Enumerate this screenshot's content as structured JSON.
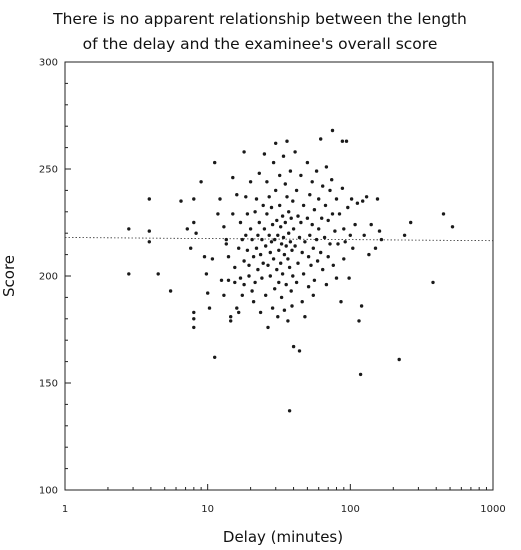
{
  "chart_data": {
    "type": "scatter",
    "title": [
      "There is no apparent relationship between the length",
      "of the delay and the examinee's overall score"
    ],
    "xlabel": "Delay (minutes)",
    "ylabel": "Score",
    "xscale": "log",
    "xlim": [
      1,
      1000
    ],
    "ylim": [
      100,
      300
    ],
    "xticks": [
      1,
      10,
      100,
      1000
    ],
    "xtick_labels": [
      "1",
      "10",
      "100",
      "1000"
    ],
    "yticks": [
      100,
      150,
      200,
      250,
      300
    ],
    "ytick_labels": [
      "100",
      "150",
      "200",
      "250",
      "300"
    ],
    "grid": false,
    "legend": "none",
    "reference_line": {
      "style": "dotted",
      "y_start": 218,
      "y_end": 216.5
    },
    "marker_color": "#1a1a1a",
    "points": [
      [
        2.8,
        222
      ],
      [
        2.8,
        201
      ],
      [
        3.9,
        236
      ],
      [
        3.9,
        221
      ],
      [
        3.9,
        216
      ],
      [
        4.5,
        201
      ],
      [
        5.5,
        193
      ],
      [
        6.5,
        235
      ],
      [
        7.2,
        222
      ],
      [
        7.6,
        213
      ],
      [
        8.0,
        236
      ],
      [
        8.0,
        225
      ],
      [
        8.0,
        183
      ],
      [
        8.0,
        180
      ],
      [
        8.0,
        176
      ],
      [
        8.3,
        220
      ],
      [
        9.0,
        244
      ],
      [
        9.5,
        209
      ],
      [
        9.8,
        201
      ],
      [
        10.0,
        192
      ],
      [
        10.3,
        185
      ],
      [
        10.8,
        208
      ],
      [
        11.2,
        253
      ],
      [
        11.2,
        162
      ],
      [
        11.8,
        229
      ],
      [
        12.2,
        236
      ],
      [
        12.5,
        198
      ],
      [
        13.0,
        223
      ],
      [
        13.0,
        191
      ],
      [
        13.5,
        217
      ],
      [
        13.5,
        215
      ],
      [
        14.0,
        209
      ],
      [
        14.0,
        198
      ],
      [
        14.5,
        181
      ],
      [
        14.5,
        179
      ],
      [
        15.0,
        246
      ],
      [
        15.0,
        229
      ],
      [
        15.5,
        204
      ],
      [
        15.5,
        197
      ],
      [
        16.0,
        238
      ],
      [
        16.0,
        185
      ],
      [
        16.5,
        213
      ],
      [
        16.5,
        183
      ],
      [
        17.0,
        225
      ],
      [
        17.0,
        199
      ],
      [
        17.5,
        217
      ],
      [
        17.5,
        191
      ],
      [
        18.0,
        258
      ],
      [
        18.0,
        207
      ],
      [
        18.0,
        196
      ],
      [
        18.5,
        237
      ],
      [
        18.5,
        219
      ],
      [
        19.0,
        229
      ],
      [
        19.0,
        212
      ],
      [
        19.5,
        205
      ],
      [
        19.5,
        200
      ],
      [
        20.0,
        244
      ],
      [
        20.0,
        222
      ],
      [
        20.5,
        217
      ],
      [
        20.5,
        193
      ],
      [
        21.0,
        209
      ],
      [
        21.0,
        188
      ],
      [
        21.5,
        230
      ],
      [
        21.5,
        197
      ],
      [
        22.0,
        236
      ],
      [
        22.0,
        213
      ],
      [
        22.5,
        219
      ],
      [
        22.5,
        203
      ],
      [
        23.0,
        248
      ],
      [
        23.0,
        225
      ],
      [
        23.5,
        210
      ],
      [
        23.5,
        183
      ],
      [
        24.0,
        217
      ],
      [
        24.0,
        199
      ],
      [
        24.5,
        233
      ],
      [
        24.5,
        206
      ],
      [
        25.0,
        257
      ],
      [
        25.0,
        222
      ],
      [
        25.5,
        214
      ],
      [
        25.5,
        191
      ],
      [
        26.0,
        244
      ],
      [
        26.0,
        229
      ],
      [
        26.5,
        205
      ],
      [
        26.5,
        176
      ],
      [
        27.0,
        237
      ],
      [
        27.0,
        219
      ],
      [
        27.5,
        211
      ],
      [
        27.5,
        200
      ],
      [
        28.0,
        232
      ],
      [
        28.0,
        216
      ],
      [
        28.5,
        224
      ],
      [
        28.5,
        185
      ],
      [
        29.0,
        253
      ],
      [
        29.0,
        208
      ],
      [
        29.5,
        217
      ],
      [
        29.5,
        194
      ],
      [
        30.0,
        262
      ],
      [
        30.0,
        240
      ],
      [
        30.5,
        226
      ],
      [
        30.5,
        203
      ],
      [
        31.0,
        219
      ],
      [
        31.0,
        181
      ],
      [
        31.5,
        212
      ],
      [
        31.5,
        197
      ],
      [
        32.0,
        247
      ],
      [
        32.0,
        233
      ],
      [
        32.5,
        223
      ],
      [
        32.5,
        206
      ],
      [
        33.0,
        215
      ],
      [
        33.0,
        190
      ],
      [
        33.5,
        228
      ],
      [
        33.5,
        201
      ],
      [
        34.0,
        256
      ],
      [
        34.0,
        218
      ],
      [
        34.5,
        210
      ],
      [
        34.5,
        184
      ],
      [
        35.0,
        243
      ],
      [
        35.0,
        225
      ],
      [
        35.5,
        214
      ],
      [
        35.5,
        196
      ],
      [
        36.0,
        263
      ],
      [
        36.0,
        237
      ],
      [
        36.5,
        208
      ],
      [
        36.5,
        179
      ],
      [
        37.0,
        230
      ],
      [
        37.0,
        220
      ],
      [
        37.5,
        204
      ],
      [
        37.5,
        137
      ],
      [
        38.0,
        249
      ],
      [
        38.0,
        216
      ],
      [
        38.5,
        227
      ],
      [
        38.5,
        193
      ],
      [
        39.0,
        212
      ],
      [
        39.0,
        186
      ],
      [
        39.5,
        235
      ],
      [
        39.5,
        200
      ],
      [
        40.0,
        222
      ],
      [
        40.0,
        167
      ],
      [
        41.0,
        258
      ],
      [
        41.0,
        214
      ],
      [
        42.0,
        240
      ],
      [
        42.0,
        197
      ],
      [
        43.0,
        228
      ],
      [
        43.0,
        206
      ],
      [
        44.0,
        218
      ],
      [
        44.0,
        165
      ],
      [
        45.0,
        247
      ],
      [
        45.0,
        225
      ],
      [
        46.0,
        211
      ],
      [
        46.0,
        188
      ],
      [
        47.0,
        233
      ],
      [
        47.0,
        201
      ],
      [
        48.0,
        216
      ],
      [
        48.0,
        181
      ],
      [
        50.0,
        253
      ],
      [
        50.0,
        227
      ],
      [
        51.0,
        209
      ],
      [
        51.0,
        195
      ],
      [
        52.0,
        238
      ],
      [
        52.0,
        219
      ],
      [
        53.0,
        205
      ],
      [
        54.0,
        244
      ],
      [
        54.0,
        224
      ],
      [
        55.0,
        213
      ],
      [
        55.0,
        191
      ],
      [
        56.0,
        231
      ],
      [
        56.0,
        198
      ],
      [
        58.0,
        249
      ],
      [
        58.0,
        217
      ],
      [
        59.0,
        207
      ],
      [
        60.0,
        236
      ],
      [
        60.0,
        222
      ],
      [
        62.0,
        264
      ],
      [
        62.0,
        211
      ],
      [
        63.0,
        227
      ],
      [
        64.0,
        242
      ],
      [
        64.0,
        203
      ],
      [
        66.0,
        218
      ],
      [
        67.0,
        233
      ],
      [
        68.0,
        251
      ],
      [
        68.0,
        196
      ],
      [
        70.0,
        226
      ],
      [
        70.0,
        209
      ],
      [
        72.0,
        240
      ],
      [
        72.0,
        215
      ],
      [
        74.0,
        245
      ],
      [
        75.0,
        268
      ],
      [
        75.0,
        229
      ],
      [
        76.0,
        205
      ],
      [
        78.0,
        221
      ],
      [
        80.0,
        236
      ],
      [
        80.0,
        199
      ],
      [
        82.0,
        215
      ],
      [
        84.0,
        229
      ],
      [
        86.0,
        188
      ],
      [
        88.0,
        263
      ],
      [
        88.0,
        241
      ],
      [
        90.0,
        222
      ],
      [
        90.0,
        208
      ],
      [
        92.0,
        216
      ],
      [
        94.0,
        263
      ],
      [
        96.0,
        232
      ],
      [
        98.0,
        199
      ],
      [
        100.0,
        219
      ],
      [
        102.0,
        236
      ],
      [
        104.0,
        213
      ],
      [
        108.0,
        224
      ],
      [
        112.0,
        234
      ],
      [
        115.0,
        179
      ],
      [
        118.0,
        154
      ],
      [
        120.0,
        186
      ],
      [
        122.0,
        235
      ],
      [
        125.0,
        219
      ],
      [
        130.0,
        237
      ],
      [
        135.0,
        210
      ],
      [
        140.0,
        224
      ],
      [
        150.0,
        213
      ],
      [
        155.0,
        236
      ],
      [
        160.0,
        221
      ],
      [
        165.0,
        217
      ],
      [
        220.0,
        161
      ],
      [
        240.0,
        219
      ],
      [
        265.0,
        225
      ],
      [
        380.0,
        197
      ],
      [
        450.0,
        229
      ],
      [
        520.0,
        223
      ]
    ]
  }
}
